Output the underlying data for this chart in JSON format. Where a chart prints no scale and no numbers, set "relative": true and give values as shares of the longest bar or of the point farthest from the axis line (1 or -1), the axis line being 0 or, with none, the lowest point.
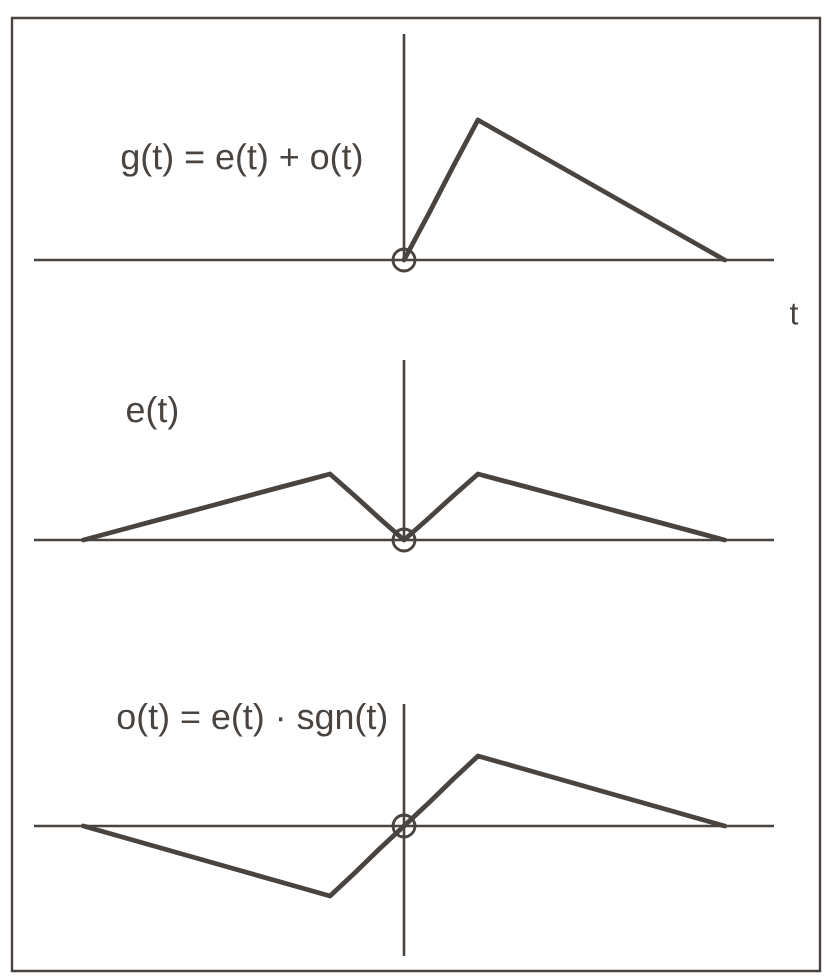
{
  "chart_data": [
    {
      "type": "line",
      "relative": true,
      "title": "g(t) = e(t) + o(t)",
      "xlabel": "t",
      "categories": [
        null,
        null,
        null,
        null,
        null,
        null,
        null,
        null,
        null,
        null,
        null,
        null,
        null,
        null,
        null,
        null,
        null,
        null,
        null,
        null,
        null,
        null,
        null,
        null,
        null,
        null,
        null,
        null,
        null,
        null,
        null
      ],
      "series": [
        {
          "color": "#4a4440",
          "values": [
            null,
            null,
            null,
            null,
            null,
            null,
            null,
            null,
            null,
            null,
            null,
            null,
            null,
            null,
            null,
            0,
            0.33,
            0.67,
            1,
            0.9,
            0.8,
            0.7,
            0.6,
            0.5,
            0.4,
            0.3,
            0.2,
            0.1,
            0,
            null,
            null
          ]
        }
      ]
    },
    {
      "type": "line",
      "relative": true,
      "title": "e(t)",
      "categories": [
        null,
        null,
        null,
        null,
        null,
        null,
        null,
        null,
        null,
        null,
        null,
        null,
        null,
        null,
        null,
        null,
        null,
        null,
        null,
        null,
        null,
        null,
        null,
        null,
        null,
        null,
        null,
        null,
        null,
        null,
        null
      ],
      "series": [
        {
          "color": "#4a4440",
          "values": [
            null,
            null,
            0,
            0.1,
            0.2,
            0.3,
            0.4,
            0.5,
            0.6,
            0.7,
            0.8,
            0.9,
            1,
            0.67,
            0.33,
            0,
            0.33,
            0.67,
            1,
            0.9,
            0.8,
            0.7,
            0.6,
            0.5,
            0.4,
            0.3,
            0.2,
            0.1,
            0,
            null,
            null
          ]
        }
      ]
    },
    {
      "type": "line",
      "relative": true,
      "title": "o(t) = e(t) · sgn(t)",
      "categories": [
        null,
        null,
        null,
        null,
        null,
        null,
        null,
        null,
        null,
        null,
        null,
        null,
        null,
        null,
        null,
        null,
        null,
        null,
        null,
        null,
        null,
        null,
        null,
        null,
        null,
        null,
        null,
        null,
        null,
        null,
        null
      ],
      "series": [
        {
          "color": "#4a4440",
          "values": [
            null,
            null,
            0,
            -0.1,
            -0.2,
            -0.3,
            -0.4,
            -0.5,
            -0.6,
            -0.7,
            -0.8,
            -0.9,
            -1,
            -0.67,
            -0.33,
            0,
            0.33,
            0.67,
            1,
            0.9,
            0.8,
            0.7,
            0.6,
            0.5,
            0.4,
            0.3,
            0.2,
            0.1,
            0,
            null,
            null
          ]
        }
      ]
    }
  ]
}
